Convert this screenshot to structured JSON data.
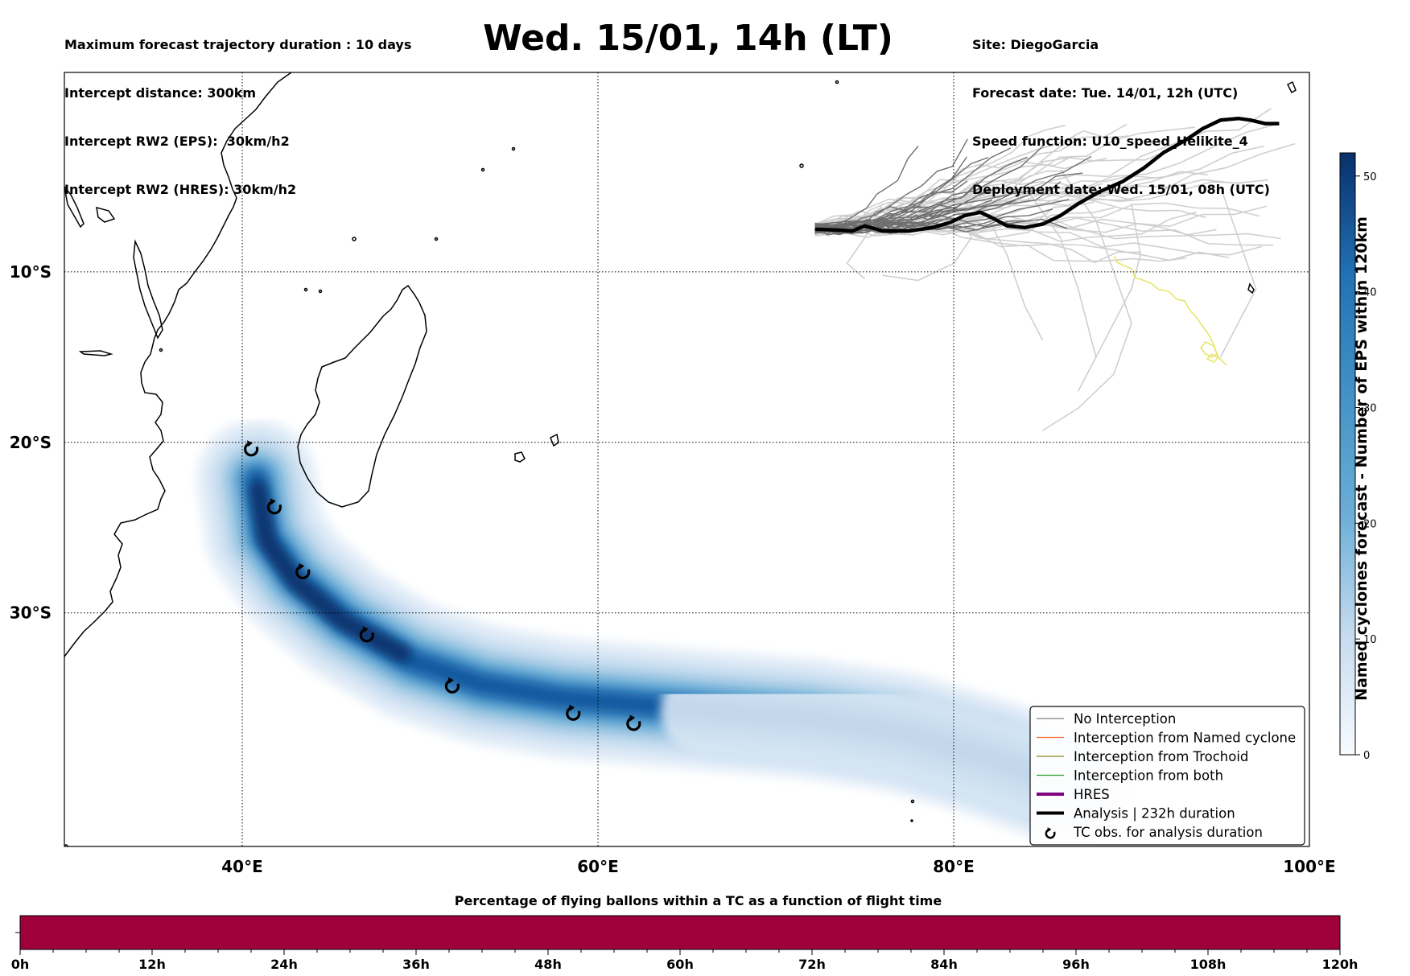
{
  "header_left": {
    "lines": [
      "Maximum forecast trajectory duration : 10 days",
      "Intercept distance: 300km",
      "Intercept RW2 (EPS):  30km/h2",
      "Intercept RW2 (HRES): 30km/h2"
    ]
  },
  "title": "Wed. 15/01, 14h (LT)",
  "header_right": {
    "lines": [
      "Site: DiegoGarcia",
      "Forecast date: Tue. 14/01, 12h (UTC)",
      "Speed function: U10_speed_Helikite_4",
      "Deployment date: Wed. 15/01, 08h (UTC)"
    ]
  },
  "map": {
    "lon_range": [
      30,
      100
    ],
    "lat_range": [
      -43.7,
      1.7
    ],
    "lon_ticks": [
      {
        "value": 40,
        "label": "40°E"
      },
      {
        "value": 60,
        "label": "60°E"
      },
      {
        "value": 80,
        "label": "80°E"
      },
      {
        "value": 100,
        "label": "100°E"
      }
    ],
    "lat_ticks": [
      {
        "value": -10,
        "label": "10°S"
      },
      {
        "value": -20,
        "label": "20°S"
      },
      {
        "value": -30,
        "label": "30°S"
      }
    ],
    "grid": "dotted",
    "analysis_track": [
      [
        72.2,
        -7.5
      ],
      [
        73.5,
        -7.55
      ],
      [
        74.3,
        -7.6
      ],
      [
        75.0,
        -7.3
      ],
      [
        76.0,
        -7.6
      ],
      [
        77.5,
        -7.6
      ],
      [
        78.8,
        -7.4
      ],
      [
        79.8,
        -7.1
      ],
      [
        80.6,
        -6.7
      ],
      [
        81.5,
        -6.5
      ],
      [
        82.3,
        -6.9
      ],
      [
        83.0,
        -7.3
      ],
      [
        84.0,
        -7.4
      ],
      [
        85.0,
        -7.2
      ],
      [
        86.0,
        -6.7
      ],
      [
        87.0,
        -6.0
      ],
      [
        88.2,
        -5.3
      ],
      [
        89.5,
        -4.7
      ],
      [
        90.7,
        -3.9
      ],
      [
        91.8,
        -3.0
      ],
      [
        93.0,
        -2.3
      ],
      [
        94.0,
        -1.6
      ],
      [
        95.0,
        -1.1
      ],
      [
        96.0,
        -1.0
      ],
      [
        96.7,
        -1.1
      ],
      [
        97.5,
        -1.3
      ],
      [
        98.3,
        -1.3
      ]
    ],
    "tc_observations": [
      [
        40.5,
        -20.4
      ],
      [
        41.8,
        -23.8
      ],
      [
        43.4,
        -27.6
      ],
      [
        47.0,
        -31.3
      ],
      [
        51.8,
        -34.3
      ],
      [
        58.6,
        -35.9
      ],
      [
        62.0,
        -36.5
      ]
    ],
    "density_band_centerline": [
      [
        40.8,
        -22.2
      ],
      [
        41.3,
        -25.5
      ],
      [
        43.0,
        -28.0
      ],
      [
        45.8,
        -30.5
      ],
      [
        49.5,
        -32.8
      ],
      [
        53.5,
        -34.2
      ],
      [
        58.0,
        -35.0
      ],
      [
        62.5,
        -35.4
      ],
      [
        67.0,
        -35.8
      ],
      [
        72.0,
        -36.2
      ],
      [
        77.0,
        -37.0
      ],
      [
        82.0,
        -38.5
      ],
      [
        86.0,
        -40.0
      ]
    ],
    "ensemble_track_colors": {
      "dark": "#6f6f6f",
      "light": "#cfcfcf",
      "yellow": "#e6e66a"
    }
  },
  "legend": {
    "placement": "lower-right",
    "items": [
      {
        "label": "No Interception",
        "color": "#808080",
        "style": "thin"
      },
      {
        "label": "Interception from Named cyclone",
        "color": "#f26b3a",
        "style": "thin"
      },
      {
        "label": "Interception from Trochoid",
        "color": "#8a8a1e",
        "style": "thin"
      },
      {
        "label": "Interception from both",
        "color": "#2aa12a",
        "style": "thin"
      },
      {
        "label": "HRES",
        "color": "#800080",
        "style": "thick"
      },
      {
        "label": "Analysis | 232h duration",
        "color": "#000000",
        "style": "thick"
      },
      {
        "label": "TC obs. for analysis duration",
        "color": "#000000",
        "style": "marker",
        "marker": "↺"
      }
    ]
  },
  "colorbar": {
    "label": "Named cyclones forecast - Number of EPS within 120km",
    "min": 0,
    "max": 52,
    "ticks": [
      0,
      10,
      20,
      30,
      40,
      50
    ],
    "colormap": "Blues"
  },
  "bottom_bar": {
    "title": "Percentage of flying ballons within a TC as a function of flight time",
    "color": "#9e003a",
    "ticks": [
      "0h",
      "12h",
      "24h",
      "36h",
      "48h",
      "60h",
      "72h",
      "84h",
      "96h",
      "108h",
      "120h"
    ]
  }
}
